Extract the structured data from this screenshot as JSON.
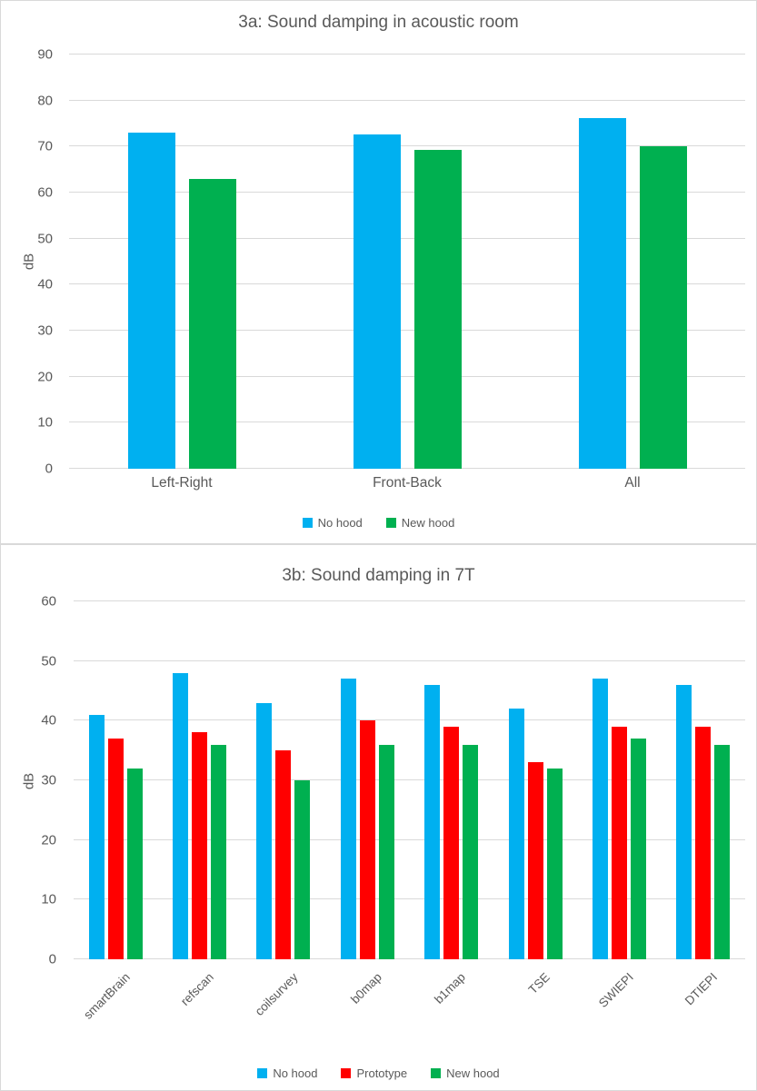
{
  "colors": {
    "no_hood_blue": "#00B0F0",
    "prototype_red": "#FF0000",
    "new_hood_green": "#00B050",
    "text_gray": "#595959",
    "gridline_gray": "#D9D9D9"
  },
  "chart_data": [
    {
      "type": "bar",
      "title": "3a: Sound damping in acoustic room",
      "xlabel": "",
      "ylabel": "dB",
      "categories": [
        "Left-Right",
        "Front-Back",
        "All"
      ],
      "series": [
        {
          "name": "No hood",
          "color": "#00B0F0",
          "values": [
            73,
            72.6,
            76.2
          ]
        },
        {
          "name": "New hood",
          "color": "#00B050",
          "values": [
            63,
            69.3,
            70
          ]
        }
      ],
      "ylim": [
        0,
        90
      ],
      "yticks": [
        90,
        80,
        70,
        60,
        50,
        40,
        30,
        20,
        10,
        0
      ],
      "grid": true,
      "legend_position": "bottom"
    },
    {
      "type": "bar",
      "title": "3b: Sound damping in 7T",
      "xlabel": "",
      "ylabel": "dB",
      "categories": [
        "smartBrain",
        "refscan",
        "coilsurvey",
        "b0map",
        "b1map",
        "TSE",
        "SWIEPI",
        "DTIEPI"
      ],
      "series": [
        {
          "name": "No hood",
          "color": "#00B0F0",
          "values": [
            41,
            48,
            43,
            47,
            46,
            42,
            47,
            46
          ]
        },
        {
          "name": "Prototype",
          "color": "#FF0000",
          "values": [
            37,
            38,
            35,
            40,
            39,
            33,
            39,
            39
          ]
        },
        {
          "name": "New hood",
          "color": "#00B050",
          "values": [
            32,
            36,
            30,
            36,
            36,
            32,
            37,
            36
          ]
        }
      ],
      "ylim": [
        0,
        60
      ],
      "yticks": [
        60,
        50,
        40,
        30,
        20,
        10,
        0
      ],
      "grid": true,
      "legend_position": "bottom"
    }
  ]
}
